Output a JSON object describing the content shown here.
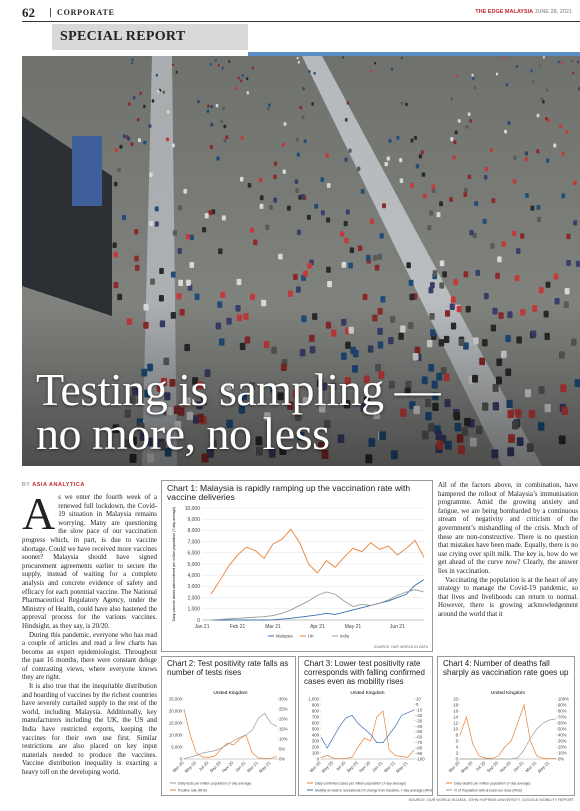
{
  "header": {
    "page_number": "62",
    "section": "CORPORATE",
    "publication": "THE EDGE MALAYSIA",
    "date": "JUNE 28, 2021"
  },
  "banner": "SPECIAL REPORT",
  "headline": [
    "Testing is sampling —",
    "no more, no less"
  ],
  "byline": {
    "prefix": "BY",
    "author": "ASIA ANALYTICA"
  },
  "article": {
    "left": [
      "As we enter the fourth week of a renewed full lockdown, the Covid-19 situation in Malaysia remains worrying. Many are questioning the slow pace of our vaccination progress which, in part, is due to vaccine shortage. Could we have received more vaccines sooner? Malaysia should have signed procurement agreements earlier to secure the supply, instead of waiting for a complete analysis and concrete evidence of safety and efficacy for each potential vaccine. The National Pharmaceutical Regulatory Agency, under the Ministry of Health, could have also hastened the approval process for the various vaccines. Hindsight, as they say, is 20/20.",
      "During this pandemic, everyone who has read a couple of articles and read a few charts has become an expert epidemiologist. Throughout the past 16 months, there were constant deluge of contrasting views, where everyone knows they are right.",
      "It is also true that the inequitable distribution and hoarding of vaccines by the richest countries have severely curtailed supply to the rest of the world, including Malaysia. Additionally, key manufacturers including the UK, the US and India have restricted exports, keeping the vaccines for their own use first. Similar restrictions are also placed on key input materials needed to produce the vaccines. Vaccine distribution inequality is exacting a heavy toll on the developing world."
    ],
    "right": [
      "All of the factors above, in combination, have hampered the rollout of Malaysia’s immunisation programme. Amid the growing anxiety and fatigue, we are being bombarded by a continuous stream of negativity and criticism of the government’s mishandling of the crisis. Much of these are non-constructive. There is no question that mistakes have been made. Equally, there is no use crying over spilt milk. The key is, how do we get ahead of the curve now? Clearly, the answer lies in vaccination.",
      "Vaccinating the population is at the heart of any strategy to manage the Covid-19 pandemic, so that lives and livelihoods can return to normal. However, there is growing acknowledgement around the world that it"
    ]
  },
  "chart_data": [
    {
      "type": "line",
      "title": "Chart 1: Malaysia is rapidly ramping up the vaccination rate with vaccine deliveries",
      "y_label": "Daily vaccine doses administered per million population (7-day average)",
      "source": "SOURCE: OUR WORLD IN DATA",
      "categories": [
        "Jan 21",
        null,
        null,
        null,
        "Feb 21",
        null,
        null,
        null,
        "Mar 21",
        null,
        null,
        null,
        null,
        "Apr 21",
        null,
        null,
        null,
        "May 21",
        null,
        null,
        null,
        null,
        "Jun 21",
        null,
        null,
        null
      ],
      "series": [
        {
          "name": "Malaysia",
          "color": "#3b6db3",
          "values": [
            null,
            0,
            0,
            0,
            0,
            0,
            0,
            0,
            20,
            80,
            150,
            250,
            350,
            450,
            600,
            500,
            700,
            900,
            1100,
            1300,
            1500,
            1700,
            2000,
            2300,
            3100,
            3600
          ]
        },
        {
          "name": "UK",
          "color": "#e8823a",
          "values": [
            null,
            2300,
            3500,
            4800,
            5800,
            6500,
            6200,
            5500,
            6800,
            7200,
            8100,
            6900,
            5000,
            4200,
            5300,
            4700,
            5600,
            6400,
            6100,
            6900,
            6300,
            6600,
            5800,
            6400,
            7100,
            5600
          ]
        },
        {
          "name": "India",
          "color": "#9a9a9a",
          "values": [
            null,
            0,
            50,
            100,
            150,
            200,
            250,
            300,
            400,
            600,
            900,
            1300,
            1700,
            2200,
            2500,
            2300,
            1700,
            1200,
            1400,
            1300,
            1500,
            1800,
            2200,
            2500,
            2700,
            2500
          ]
        }
      ],
      "ylim": [
        0,
        10000
      ],
      "yticks": [
        0,
        {
          "value": 1000,
          "label": "1,000"
        },
        {
          "value": 2000,
          "label": "2,000"
        },
        {
          "value": 3000,
          "label": "3,000"
        },
        {
          "value": 4000,
          "label": "4,000"
        },
        {
          "value": 5000,
          "label": "5,000"
        },
        {
          "value": 6000,
          "label": "6,000"
        },
        {
          "value": 7000,
          "label": "7,000"
        },
        {
          "value": 8000,
          "label": "8,000"
        },
        {
          "value": 9000,
          "label": "9,000"
        },
        {
          "value": 10000,
          "label": "10,000"
        }
      ],
      "grid": true
    },
    {
      "type": "line",
      "title": "Chart 2: Test positivity rate falls as number of tests rises",
      "subtitle": "United Kingdom",
      "categories": [
        "Mar-20",
        null,
        "May-20",
        null,
        "Jul-20",
        null,
        "Sep-20",
        null,
        "Nov-20",
        null,
        "Jan-21",
        null,
        "Mar-21",
        null,
        "May-21",
        null
      ],
      "series": [
        {
          "name": "Daily tests per million population (7-day average)",
          "color": "#9a9a9a",
          "values": [
            100,
            800,
            1500,
            2500,
            3000,
            3500,
            4500,
            6000,
            7500,
            9000,
            10000,
            12000,
            17000,
            19000,
            15000,
            13500
          ]
        },
        {
          "name": "Positive rate (RHS)",
          "color": "#e8823a",
          "axis": "y2",
          "values": [
            25,
            12,
            3,
            1,
            0.8,
            1.5,
            5,
            8,
            7,
            10,
            12,
            3,
            0.5,
            0.3,
            0.4,
            1.2
          ]
        }
      ],
      "ylim": [
        0,
        25000
      ],
      "yticks": [
        0,
        {
          "value": 5000,
          "label": "5,000"
        },
        {
          "value": 10000,
          "label": "10,000"
        },
        {
          "value": 15000,
          "label": "15,000"
        },
        {
          "value": 20000,
          "label": "20,000"
        },
        {
          "value": 25000,
          "label": "25,000"
        }
      ],
      "y2lim": [
        0,
        30
      ],
      "y2ticks": [
        {
          "value": 0,
          "label": "0%"
        },
        {
          "value": 5,
          "label": "5%"
        },
        {
          "value": 10,
          "label": "10%"
        },
        {
          "value": 15,
          "label": "15%"
        },
        {
          "value": 20,
          "label": "20%"
        },
        {
          "value": 25,
          "label": "25%"
        },
        {
          "value": 30,
          "label": "30%"
        }
      ],
      "grid": false
    },
    {
      "type": "line",
      "title": "Chart 3: Lower test positivity rate corresponds with falling confirmed cases even as mobility rises",
      "subtitle": "United Kingdom",
      "categories": [
        "Mar-20",
        null,
        "May-20",
        null,
        "Jul-20",
        null,
        "Sep-20",
        null,
        "Nov-20",
        null,
        "Jan-21",
        null,
        "Mar-21",
        null,
        "May-21",
        null
      ],
      "series": [
        {
          "name": "Daily confirmed cases per million population (7-day average)",
          "color": "#e8823a",
          "values": [
            20,
            60,
            15,
            5,
            10,
            30,
            200,
            350,
            300,
            700,
            800,
            150,
            60,
            40,
            30,
            150
          ]
        },
        {
          "name": "Mobility at retail & recreational (% change from baseline, 7-day average) (RHS)",
          "color": "#3b6db3",
          "axis": "y2",
          "values": [
            -60,
            -80,
            -60,
            -40,
            -25,
            -20,
            -35,
            -45,
            -55,
            -70,
            -70,
            -55,
            -40,
            -20,
            -15,
            -10
          ]
        }
      ],
      "ylim": [
        0,
        1000
      ],
      "yticks": [
        0,
        100,
        200,
        300,
        400,
        500,
        600,
        700,
        800,
        900,
        {
          "value": 1000,
          "label": "1,000"
        }
      ],
      "y2lim": [
        -100,
        10
      ],
      "y2ticks": [
        10,
        0,
        -10,
        -20,
        -30,
        -40,
        -50,
        -60,
        -70,
        -80,
        -90,
        -100
      ],
      "grid": false
    },
    {
      "type": "line",
      "title": "Chart 4: Number of deaths fall sharply as vaccination rate goes up",
      "subtitle": "United Kingdom",
      "categories": [
        "Mar-20",
        null,
        "May-20",
        null,
        "Jul-20",
        null,
        "Sep-20",
        null,
        "Nov-20",
        null,
        "Jan-21",
        null,
        "Mar-21",
        null,
        "May-21",
        null
      ],
      "series": [
        {
          "name": "Daily deaths per million population (7-day average)",
          "color": "#e8823a",
          "values": [
            8,
            14,
            5,
            1,
            0.3,
            0.2,
            1,
            4,
            6,
            12,
            18,
            6,
            1,
            0.2,
            0.1,
            0.2
          ]
        },
        {
          "name": "% of Population with at least one dose (RHS)",
          "color": "#9a9a9a",
          "axis": "y2",
          "values": [
            0,
            0,
            0,
            0,
            0,
            0,
            0,
            0,
            0,
            2,
            15,
            35,
            50,
            60,
            65,
            67
          ]
        }
      ],
      "ylim": [
        0,
        20
      ],
      "yticks": [
        0,
        2,
        4,
        6,
        8,
        10,
        12,
        14,
        16,
        18,
        20
      ],
      "y2lim": [
        0,
        100
      ],
      "y2ticks": [
        {
          "value": 0,
          "label": "0%"
        },
        {
          "value": 10,
          "label": "10%"
        },
        {
          "value": 20,
          "label": "20%"
        },
        {
          "value": 30,
          "label": "30%"
        },
        {
          "value": 40,
          "label": "40%"
        },
        {
          "value": 50,
          "label": "50%"
        },
        {
          "value": 60,
          "label": "60%"
        },
        {
          "value": 70,
          "label": "70%"
        },
        {
          "value": 80,
          "label": "80%"
        },
        {
          "value": 90,
          "label": "90%"
        },
        {
          "value": 100,
          "label": "100%"
        }
      ],
      "grid": false
    }
  ],
  "footer_source": "SOURCE: OUR WORLD IN DATA, JOHN HOPKINS UNIVERSITY, GOOGLE MOBILITY REPORT"
}
